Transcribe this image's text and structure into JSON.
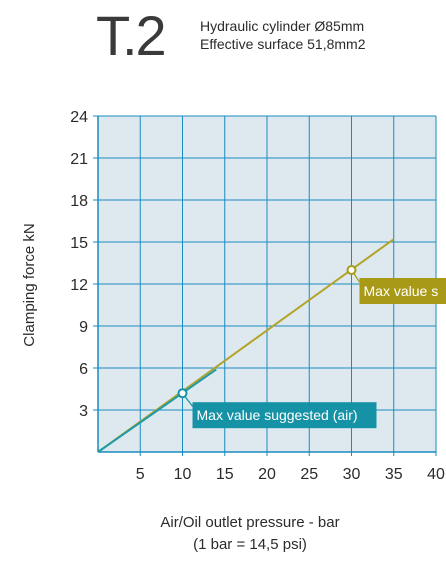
{
  "header": {
    "code": "T.2",
    "line1": "Hydraulic cylinder Ø85mm",
    "line2": "Effective surface 51,8mm2"
  },
  "colors": {
    "plot_bg": "#dde9ef",
    "grid": "#1a8bc0",
    "oil_line": "#b3a42a",
    "air_line": "#1f9aa8",
    "oil_callout": "#a89a16",
    "air_callout": "#1592a6"
  },
  "chart_data": {
    "type": "line",
    "title": "",
    "xlabel": "Air/Oil outlet pressure - bar",
    "xlabel_note": "(1 bar = 14,5 psi)",
    "ylabel": "Clamping force kN",
    "xlim": [
      0,
      40
    ],
    "ylim": [
      0,
      24
    ],
    "x_ticks": [
      "5",
      "10",
      "15",
      "20",
      "25",
      "30",
      "35",
      "40"
    ],
    "y_ticks": [
      "3",
      "6",
      "9",
      "12",
      "15",
      "18",
      "21",
      "24"
    ],
    "grid": true,
    "series": [
      {
        "name": "",
        "color": "#b3a42a",
        "points": [
          [
            0,
            0
          ],
          [
            35,
            15.2
          ]
        ]
      },
      {
        "name": "",
        "color": "#1f9aa8",
        "points": [
          [
            0,
            0
          ],
          [
            14,
            5.9
          ]
        ]
      }
    ],
    "annotations": [
      {
        "text": "Max value s",
        "point": [
          30,
          13
        ],
        "color": "#a89a16"
      },
      {
        "text": "Max value suggested (air)",
        "point": [
          10,
          4.2
        ],
        "color": "#1592a6"
      }
    ]
  }
}
